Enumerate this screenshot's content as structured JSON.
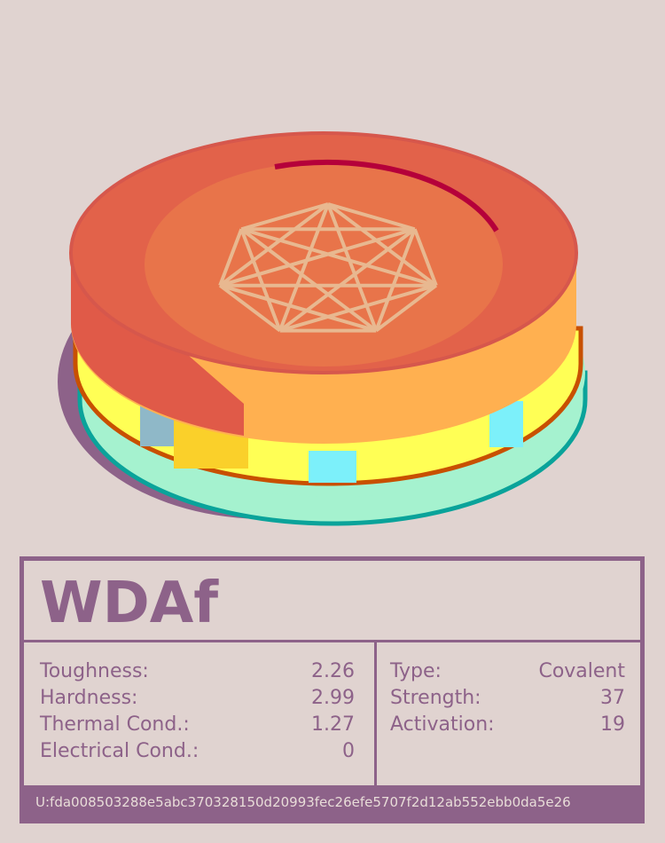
{
  "title": "WDAf",
  "left_properties": [
    {
      "label": "Toughness:",
      "value": 2.26
    },
    {
      "label": "Hardness:",
      "value": 2.99
    },
    {
      "label": "Thermal Cond.:",
      "value": 1.27
    },
    {
      "label": "Electrical Cond.:",
      "value": 0
    }
  ],
  "right_properties": [
    {
      "label": "Type:",
      "value": "Covalent"
    },
    {
      "label": "Strength:",
      "value": 37
    },
    {
      "label": "Activation:",
      "value": 19
    }
  ],
  "footer": "U:fda008503288e5abc370328150d20993fec26efe5707f2d12ab552ebb0da5e26"
}
